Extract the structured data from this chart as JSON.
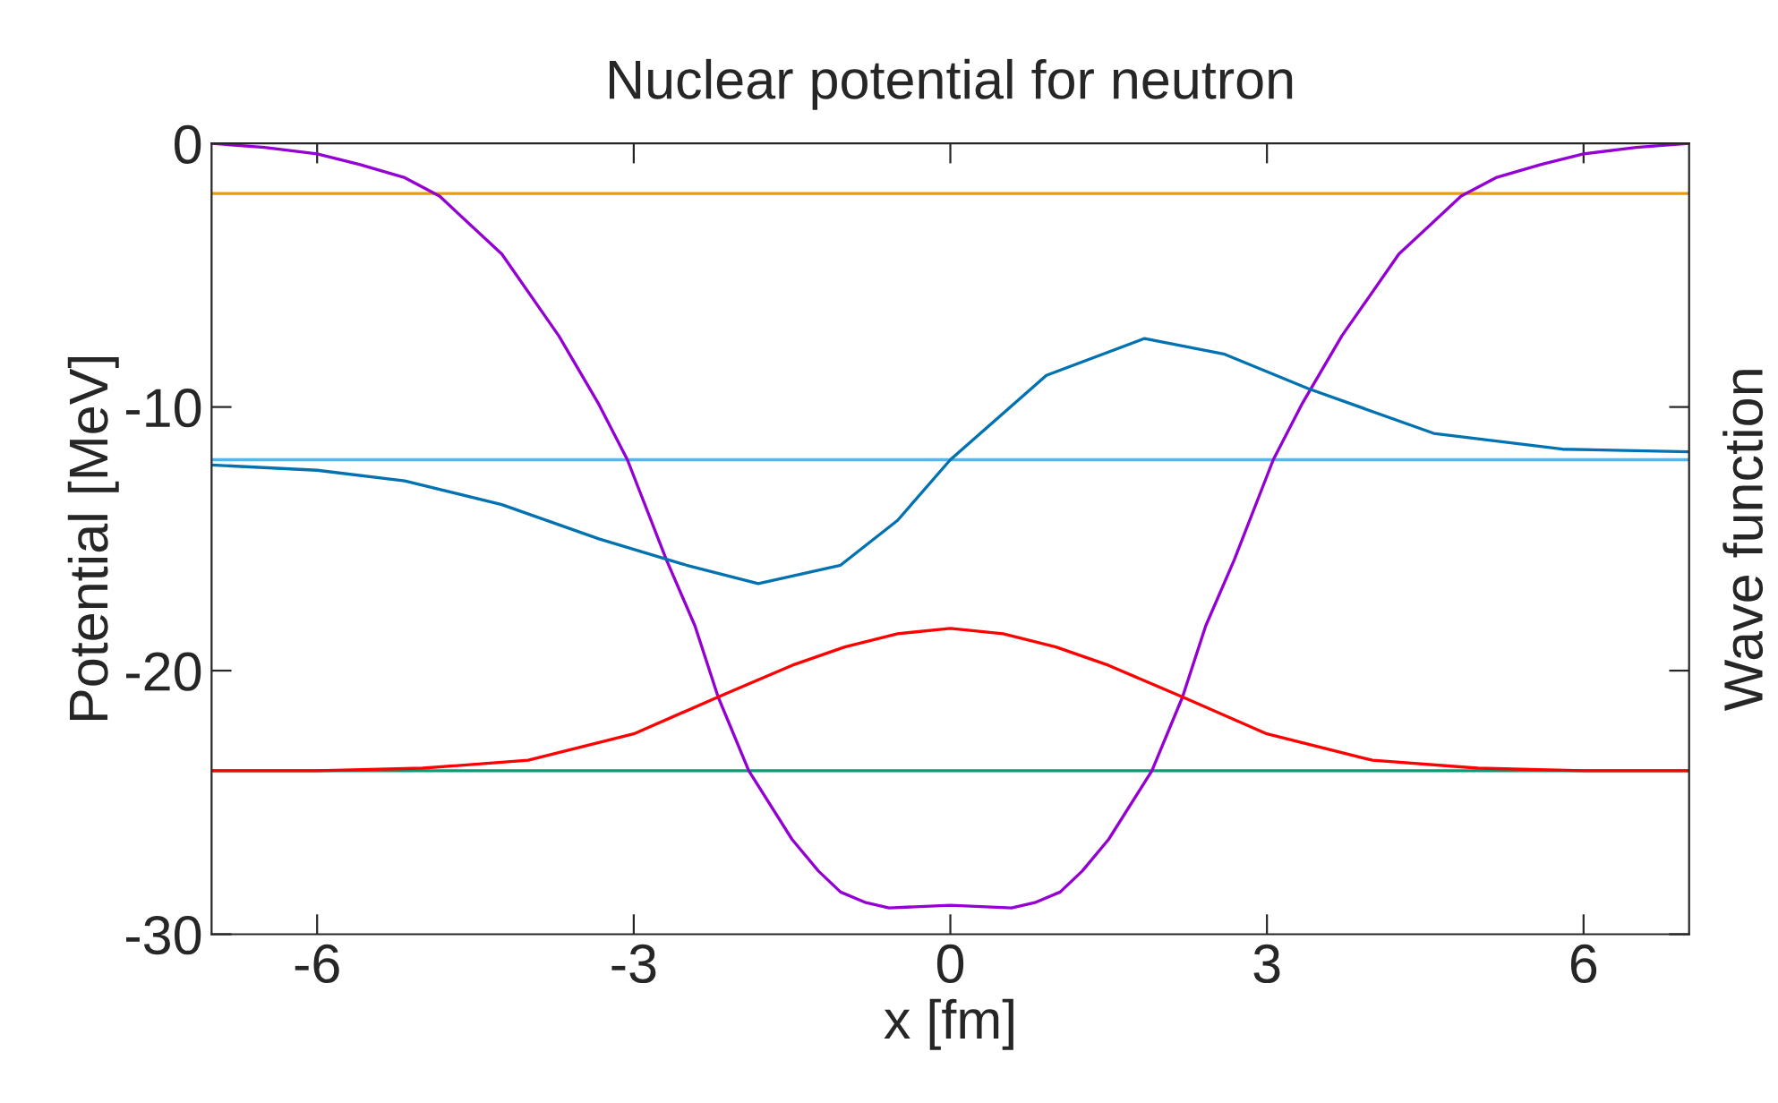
{
  "chart_data": {
    "type": "line",
    "title": "Nuclear potential for neutron",
    "xlabel": "x [fm]",
    "ylabel": "Potential [MeV]",
    "y2label": "Wave function",
    "xlim": [
      -7,
      7
    ],
    "ylim": [
      -30,
      0
    ],
    "xticks": [
      -6,
      -3,
      0,
      3,
      6
    ],
    "yticks": [
      0,
      -10,
      -20,
      -30
    ],
    "grid": false,
    "legend": false,
    "marker": "none",
    "line_style": "solid",
    "series": [
      {
        "color": "#e69f00",
        "x": [
          -7,
          7
        ],
        "values": [
          -1.9,
          -1.9
        ]
      },
      {
        "color": "#56b4e9",
        "x": [
          -7,
          7
        ],
        "values": [
          -12.0,
          -12.0
        ]
      },
      {
        "color": "#009e73",
        "x": [
          -7,
          7
        ],
        "values": [
          -23.8,
          -23.8
        ]
      },
      {
        "color": "#9400d3",
        "x": [
          -7,
          -6.5,
          -6,
          -5.6,
          -5.17,
          -4.84,
          -4.25,
          -3.71,
          -3.33,
          -3.06,
          -2.69,
          -2.42,
          -2.2,
          -1.91,
          -1.5,
          -1.25,
          -1.04,
          -0.8,
          -0.58,
          0,
          0.58,
          0.8,
          1.04,
          1.25,
          1.5,
          1.91,
          2.2,
          2.42,
          2.69,
          3.06,
          3.33,
          3.71,
          4.25,
          4.84,
          5.17,
          5.6,
          6,
          6.5,
          7
        ],
        "values": [
          0,
          -0.15,
          -0.4,
          -0.8,
          -1.3,
          -2.0,
          -4.2,
          -7.3,
          -9.9,
          -12.0,
          -15.8,
          -18.3,
          -21.0,
          -23.8,
          -26.4,
          -27.6,
          -28.4,
          -28.8,
          -29.0,
          -28.9,
          -29.0,
          -28.8,
          -28.4,
          -27.6,
          -26.4,
          -23.8,
          -21.0,
          -18.3,
          -15.8,
          -12.0,
          -9.9,
          -7.3,
          -4.2,
          -2.0,
          -1.3,
          -0.8,
          -0.4,
          -0.15,
          0
        ]
      },
      {
        "color": "#ff0000",
        "x": [
          -7,
          -6,
          -5,
          -4,
          -3,
          -2.2,
          -1.5,
          -1,
          -0.5,
          0,
          0.5,
          1,
          1.5,
          2.2,
          3,
          4,
          5,
          6,
          7
        ],
        "values": [
          -23.8,
          -23.8,
          -23.7,
          -23.4,
          -22.4,
          -21.0,
          -19.8,
          -19.1,
          -18.6,
          -18.4,
          -18.6,
          -19.1,
          -19.8,
          -21.0,
          -22.4,
          -23.4,
          -23.7,
          -23.8,
          -23.8
        ]
      },
      {
        "color": "#0072b2",
        "x": [
          -7,
          -6,
          -5.17,
          -4.25,
          -3.33,
          -2.5,
          -1.82,
          -1.04,
          -0.5,
          0,
          0.91,
          1.84,
          2.6,
          3.39,
          4.58,
          5.8,
          7
        ],
        "values": [
          -12.2,
          -12.4,
          -12.8,
          -13.7,
          -15.0,
          -16.0,
          -16.7,
          -16.0,
          -14.3,
          -12.0,
          -8.8,
          -7.4,
          -8.0,
          -9.3,
          -11.0,
          -11.6,
          -11.7
        ]
      }
    ]
  }
}
